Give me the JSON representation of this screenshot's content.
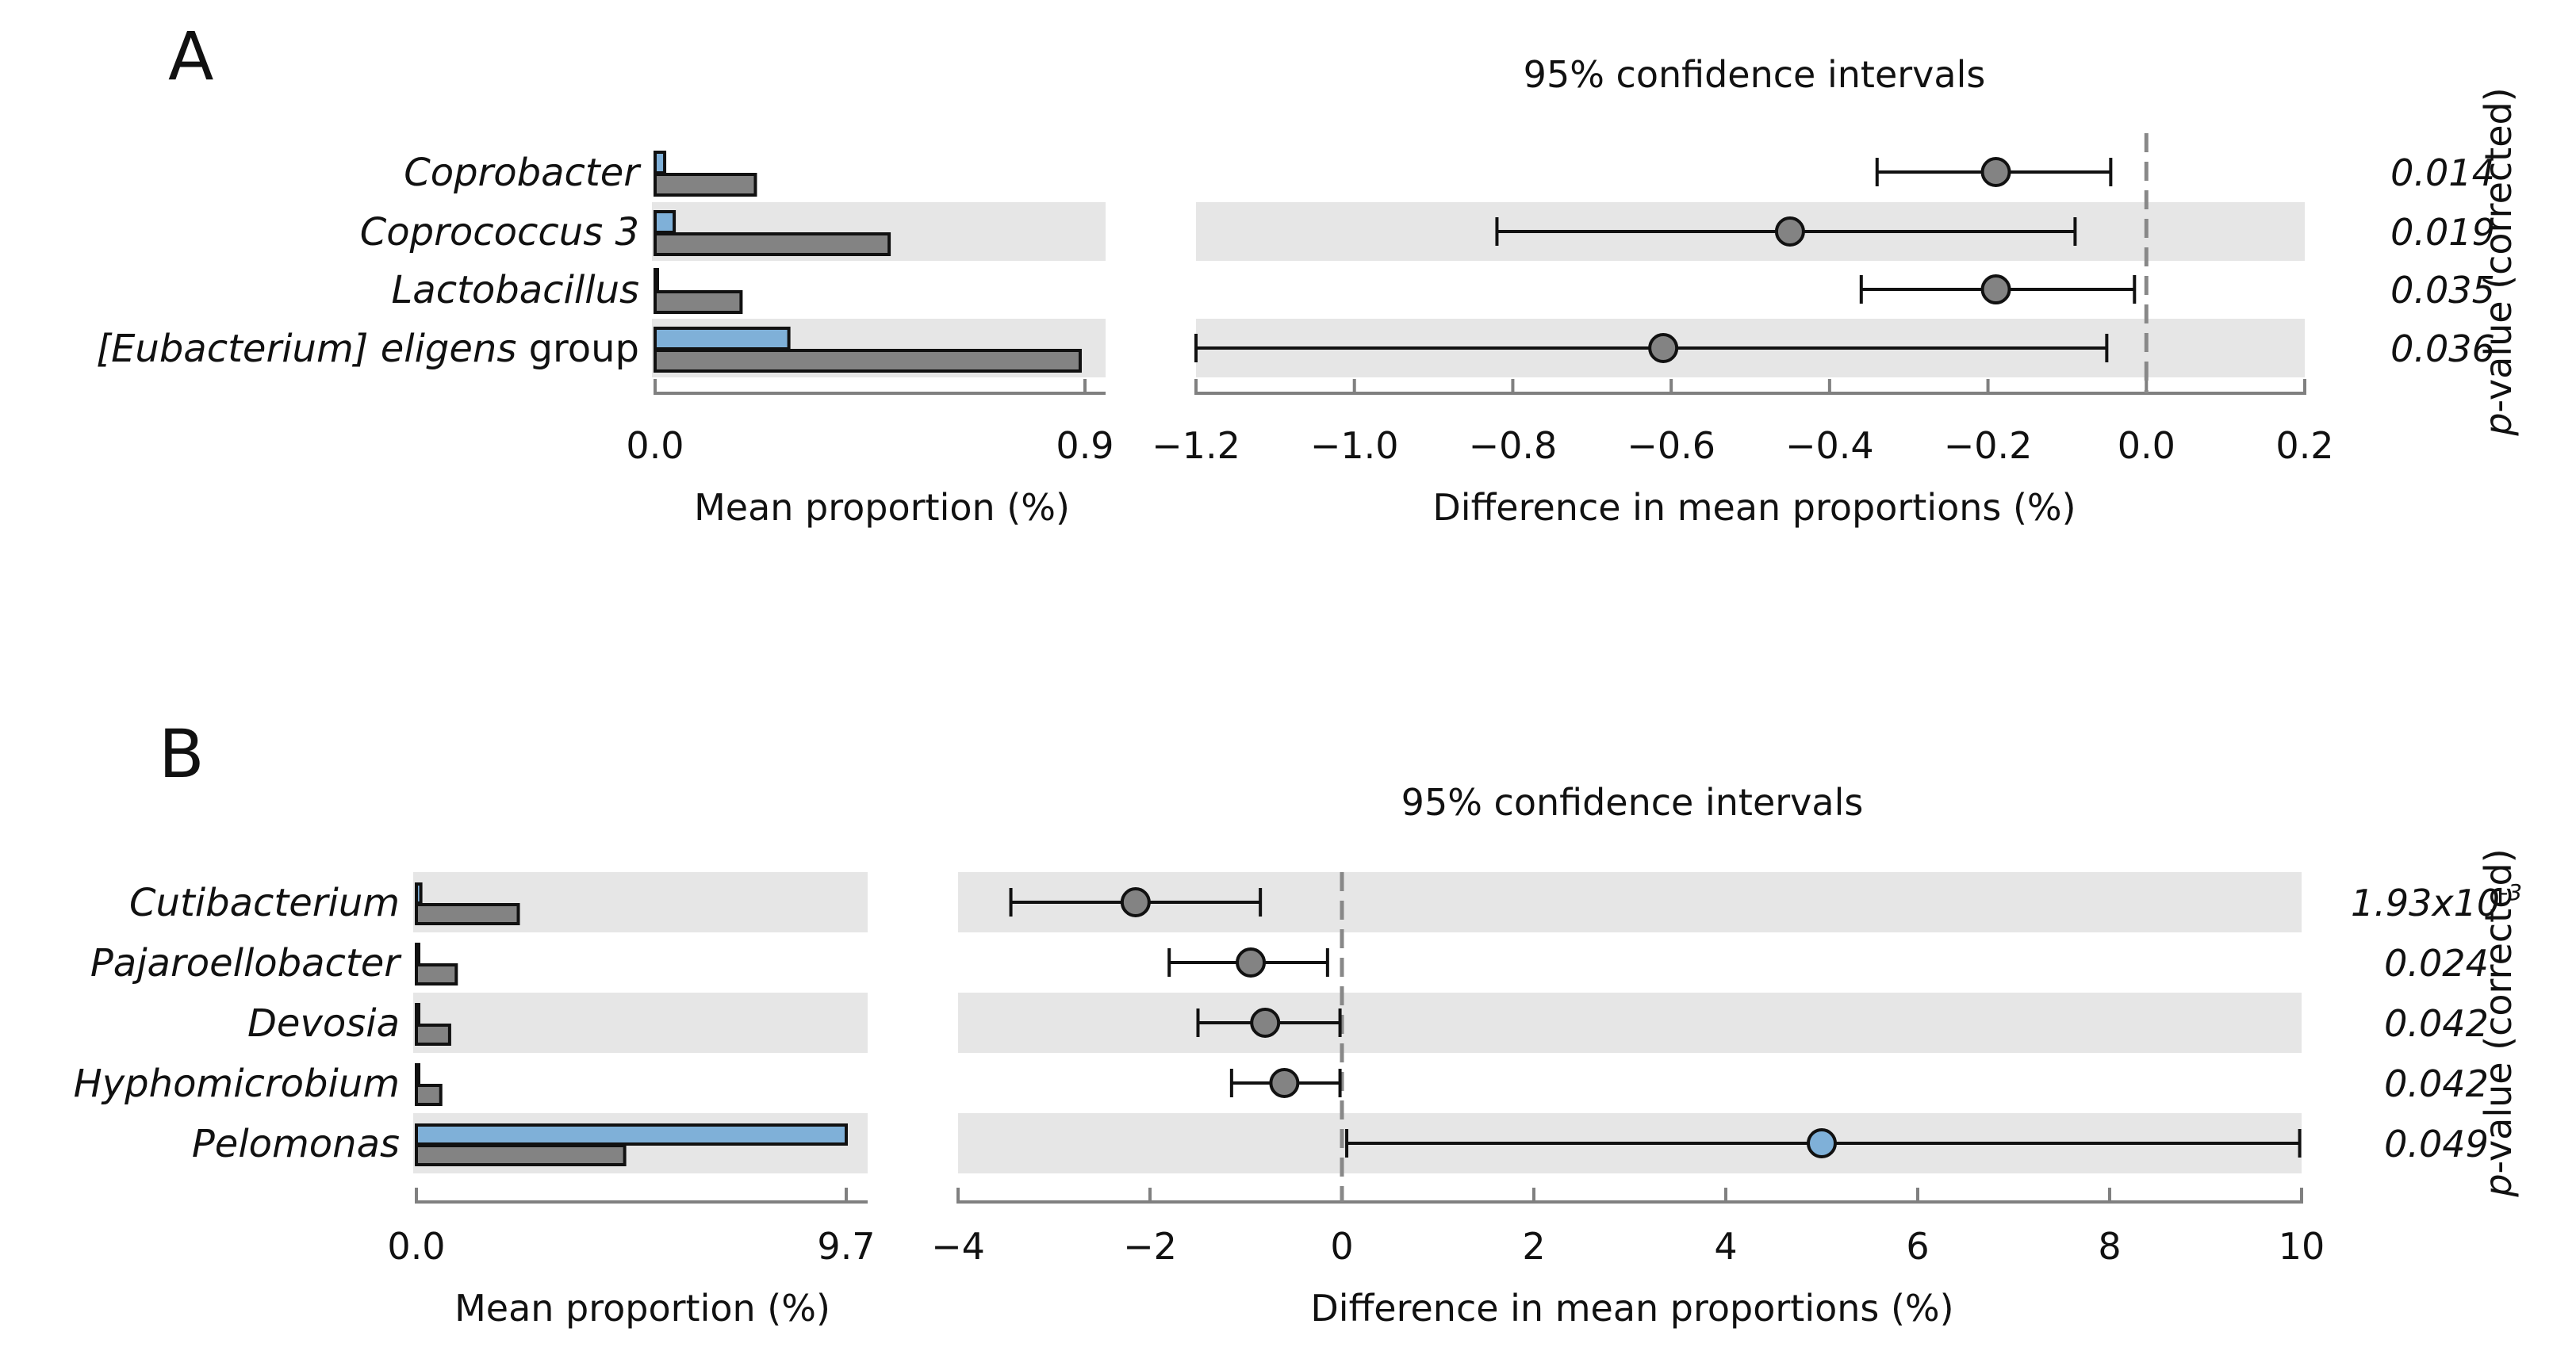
{
  "colors": {
    "group_blue": "#7fb0d8",
    "group_gray": "#838383",
    "stripe": "#e6e6e6",
    "axis": "#808080",
    "zero_line": "#888888"
  },
  "chart_data": [
    {
      "panel": "A",
      "type": "bar",
      "title": "95% confidence intervals",
      "categories": [
        {
          "name": "Coprobacter",
          "suffix": ""
        },
        {
          "name": "Coprococcus 3",
          "suffix": ""
        },
        {
          "name": "Lactobacillus",
          "suffix": ""
        },
        {
          "name": "[Eubacterium] eligens",
          "suffix": " group"
        }
      ],
      "series": [
        {
          "name": "group-blue",
          "color": "#7fb0d8",
          "values": [
            0.02,
            0.04,
            0.0,
            0.28
          ]
        },
        {
          "name": "group-gray",
          "color": "#838383",
          "values": [
            0.21,
            0.49,
            0.18,
            0.89
          ]
        }
      ],
      "bar_axis": {
        "label": "Mean proportion (%)",
        "min": 0.0,
        "max": 0.9,
        "tick_labels": [
          "0.0",
          "0.9"
        ]
      },
      "ci": {
        "diff": [
          -0.19,
          -0.45,
          -0.19,
          -0.61
        ],
        "lower": [
          -0.34,
          -0.82,
          -0.36,
          -1.2
        ],
        "upper": [
          -0.045,
          -0.09,
          -0.015,
          -0.05
        ],
        "point_color": "gray"
      },
      "diff_axis": {
        "label": "Difference in mean proportions (%)",
        "min": -1.2,
        "max": 0.2,
        "ticks": [
          -1.2,
          -1.0,
          -0.8,
          -0.6,
          -0.4,
          -0.2,
          0.0,
          0.2
        ],
        "tick_labels": [
          "−1.2",
          "−1.0",
          "−0.8",
          "−0.6",
          "−0.4",
          "−0.2",
          "0.0",
          "0.2"
        ]
      },
      "p_values": [
        {
          "text": "0.014",
          "sup": ""
        },
        {
          "text": "0.019",
          "sup": ""
        },
        {
          "text": "0.035",
          "sup": ""
        },
        {
          "text": "0.036",
          "sup": ""
        }
      ],
      "p_axis_title_italic": "p",
      "p_axis_title_rest": "-value (corrected)"
    },
    {
      "panel": "B",
      "type": "bar",
      "title": "95% confidence intervals",
      "categories": [
        {
          "name": "Cutibacterium",
          "suffix": ""
        },
        {
          "name": "Pajaroellobacter",
          "suffix": ""
        },
        {
          "name": "Devosia",
          "suffix": ""
        },
        {
          "name": "Hyphomicrobium",
          "suffix": ""
        },
        {
          "name": "Pelomonas",
          "suffix": ""
        }
      ],
      "series": [
        {
          "name": "group-blue",
          "color": "#7fb0d8",
          "values": [
            0.1,
            0.0,
            0.0,
            0.0,
            9.7
          ]
        },
        {
          "name": "group-gray",
          "color": "#838383",
          "values": [
            2.3,
            0.9,
            0.75,
            0.55,
            4.7
          ]
        }
      ],
      "bar_axis": {
        "label": "Mean proportion (%)",
        "min": 0.0,
        "max": 9.7,
        "tick_labels": [
          "0.0",
          "9.7"
        ]
      },
      "ci": {
        "diff": [
          -2.15,
          -0.95,
          -0.8,
          -0.6,
          5.0
        ],
        "lower": [
          -3.45,
          -1.8,
          -1.5,
          -1.15,
          0.05
        ],
        "upper": [
          -0.85,
          -0.15,
          -0.02,
          -0.02,
          9.98
        ],
        "point_color": [
          "gray",
          "gray",
          "gray",
          "gray",
          "blue"
        ]
      },
      "diff_axis": {
        "label": "Difference in mean proportions (%)",
        "min": -4,
        "max": 10,
        "ticks": [
          -4,
          -2,
          0,
          2,
          4,
          6,
          8,
          10
        ],
        "tick_labels": [
          "−4",
          "−2",
          "0",
          "2",
          "4",
          "6",
          "8",
          "10"
        ]
      },
      "p_values": [
        {
          "text": "1.93x10",
          "sup": "-3"
        },
        {
          "text": "0.024",
          "sup": ""
        },
        {
          "text": "0.042",
          "sup": ""
        },
        {
          "text": "0.042",
          "sup": ""
        },
        {
          "text": "0.049",
          "sup": ""
        }
      ],
      "p_axis_title_italic": "p",
      "p_axis_title_rest": "-value (corrected)"
    }
  ]
}
